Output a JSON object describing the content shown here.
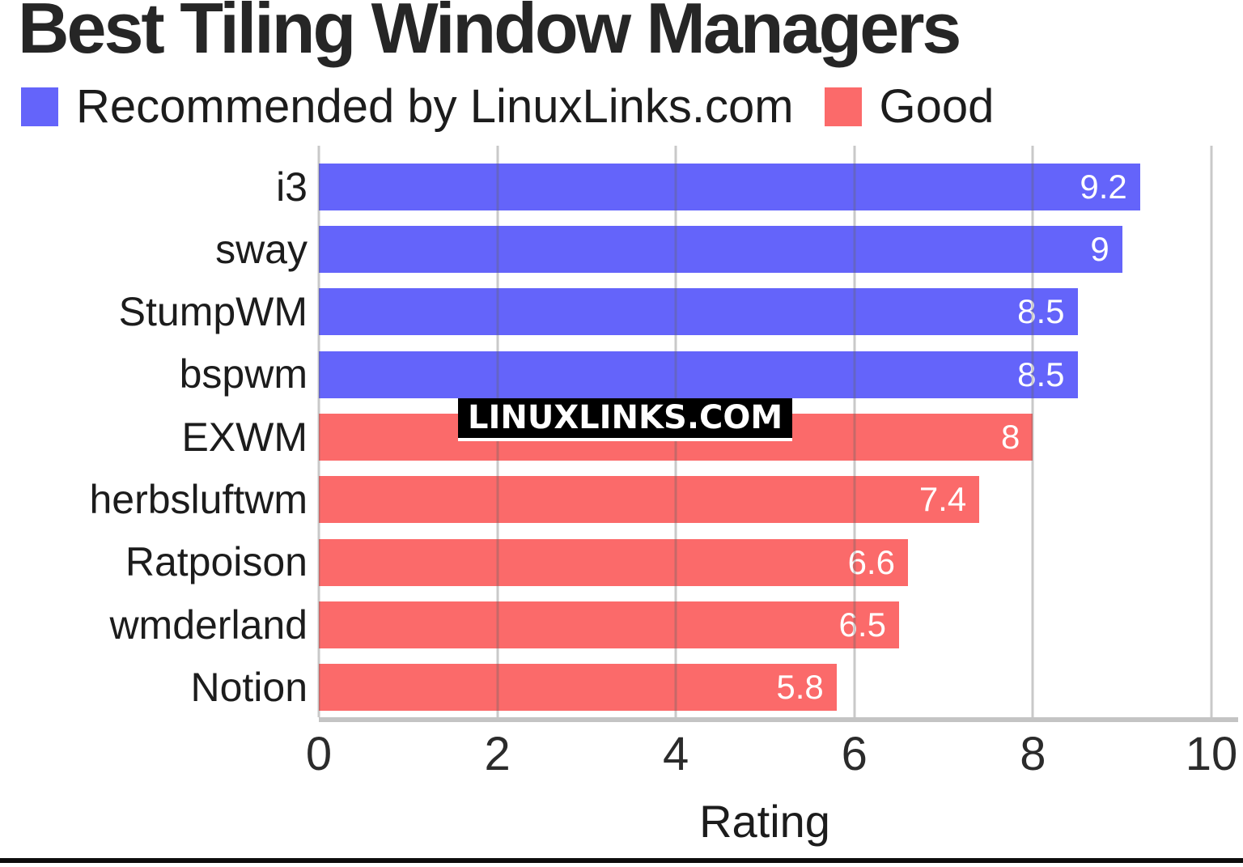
{
  "title": "Best Tiling Window Managers",
  "watermark": "LINUXLINKS.COM",
  "legend": [
    {
      "label": "Recommended by LinuxLinks.com",
      "color": "#6464fa",
      "key": "recommended"
    },
    {
      "label": "Good",
      "color": "#fb6a6a",
      "key": "good"
    }
  ],
  "colors": {
    "recommended": "#6464fa",
    "good": "#fb6a6a",
    "grid": "rgba(100,100,100,0.35)",
    "axis_line": "#c4c4c4",
    "text": "#262626",
    "bar_value_text": "#ffffff",
    "bottom_rule": "#0d0d0d"
  },
  "chart_data": {
    "type": "bar",
    "orientation": "horizontal",
    "title": "Best Tiling Window Managers",
    "xlabel": "Rating",
    "xlim": [
      0,
      10
    ],
    "x_ticks": [
      0,
      2,
      4,
      6,
      8,
      10
    ],
    "x_tick_labels": [
      "0",
      "2",
      "4",
      "6",
      "8",
      "10"
    ],
    "grid": true,
    "legend_position": "top-left",
    "categories": [
      "i3",
      "sway",
      "StumpWM",
      "bspwm",
      "EXWM",
      "herbsluftwm",
      "Ratpoison",
      "wmderland",
      "Notion"
    ],
    "values": [
      9.2,
      9,
      8.5,
      8.5,
      8,
      7.4,
      6.6,
      6.5,
      5.8
    ],
    "value_labels": [
      "9.2",
      "9",
      "8.5",
      "8.5",
      "8",
      "7.4",
      "6.6",
      "6.5",
      "5.8"
    ],
    "groups": [
      "recommended",
      "recommended",
      "recommended",
      "recommended",
      "good",
      "good",
      "good",
      "good",
      "good"
    ],
    "series": [
      {
        "name": "Recommended by LinuxLinks.com",
        "color": "#6464fa",
        "categories": [
          "i3",
          "sway",
          "StumpWM",
          "bspwm"
        ],
        "values": [
          9.2,
          9,
          8.5,
          8.5
        ]
      },
      {
        "name": "Good",
        "color": "#fb6a6a",
        "categories": [
          "EXWM",
          "herbsluftwm",
          "Ratpoison",
          "wmderland",
          "Notion"
        ],
        "values": [
          8,
          7.4,
          6.6,
          6.5,
          5.8
        ]
      }
    ]
  }
}
